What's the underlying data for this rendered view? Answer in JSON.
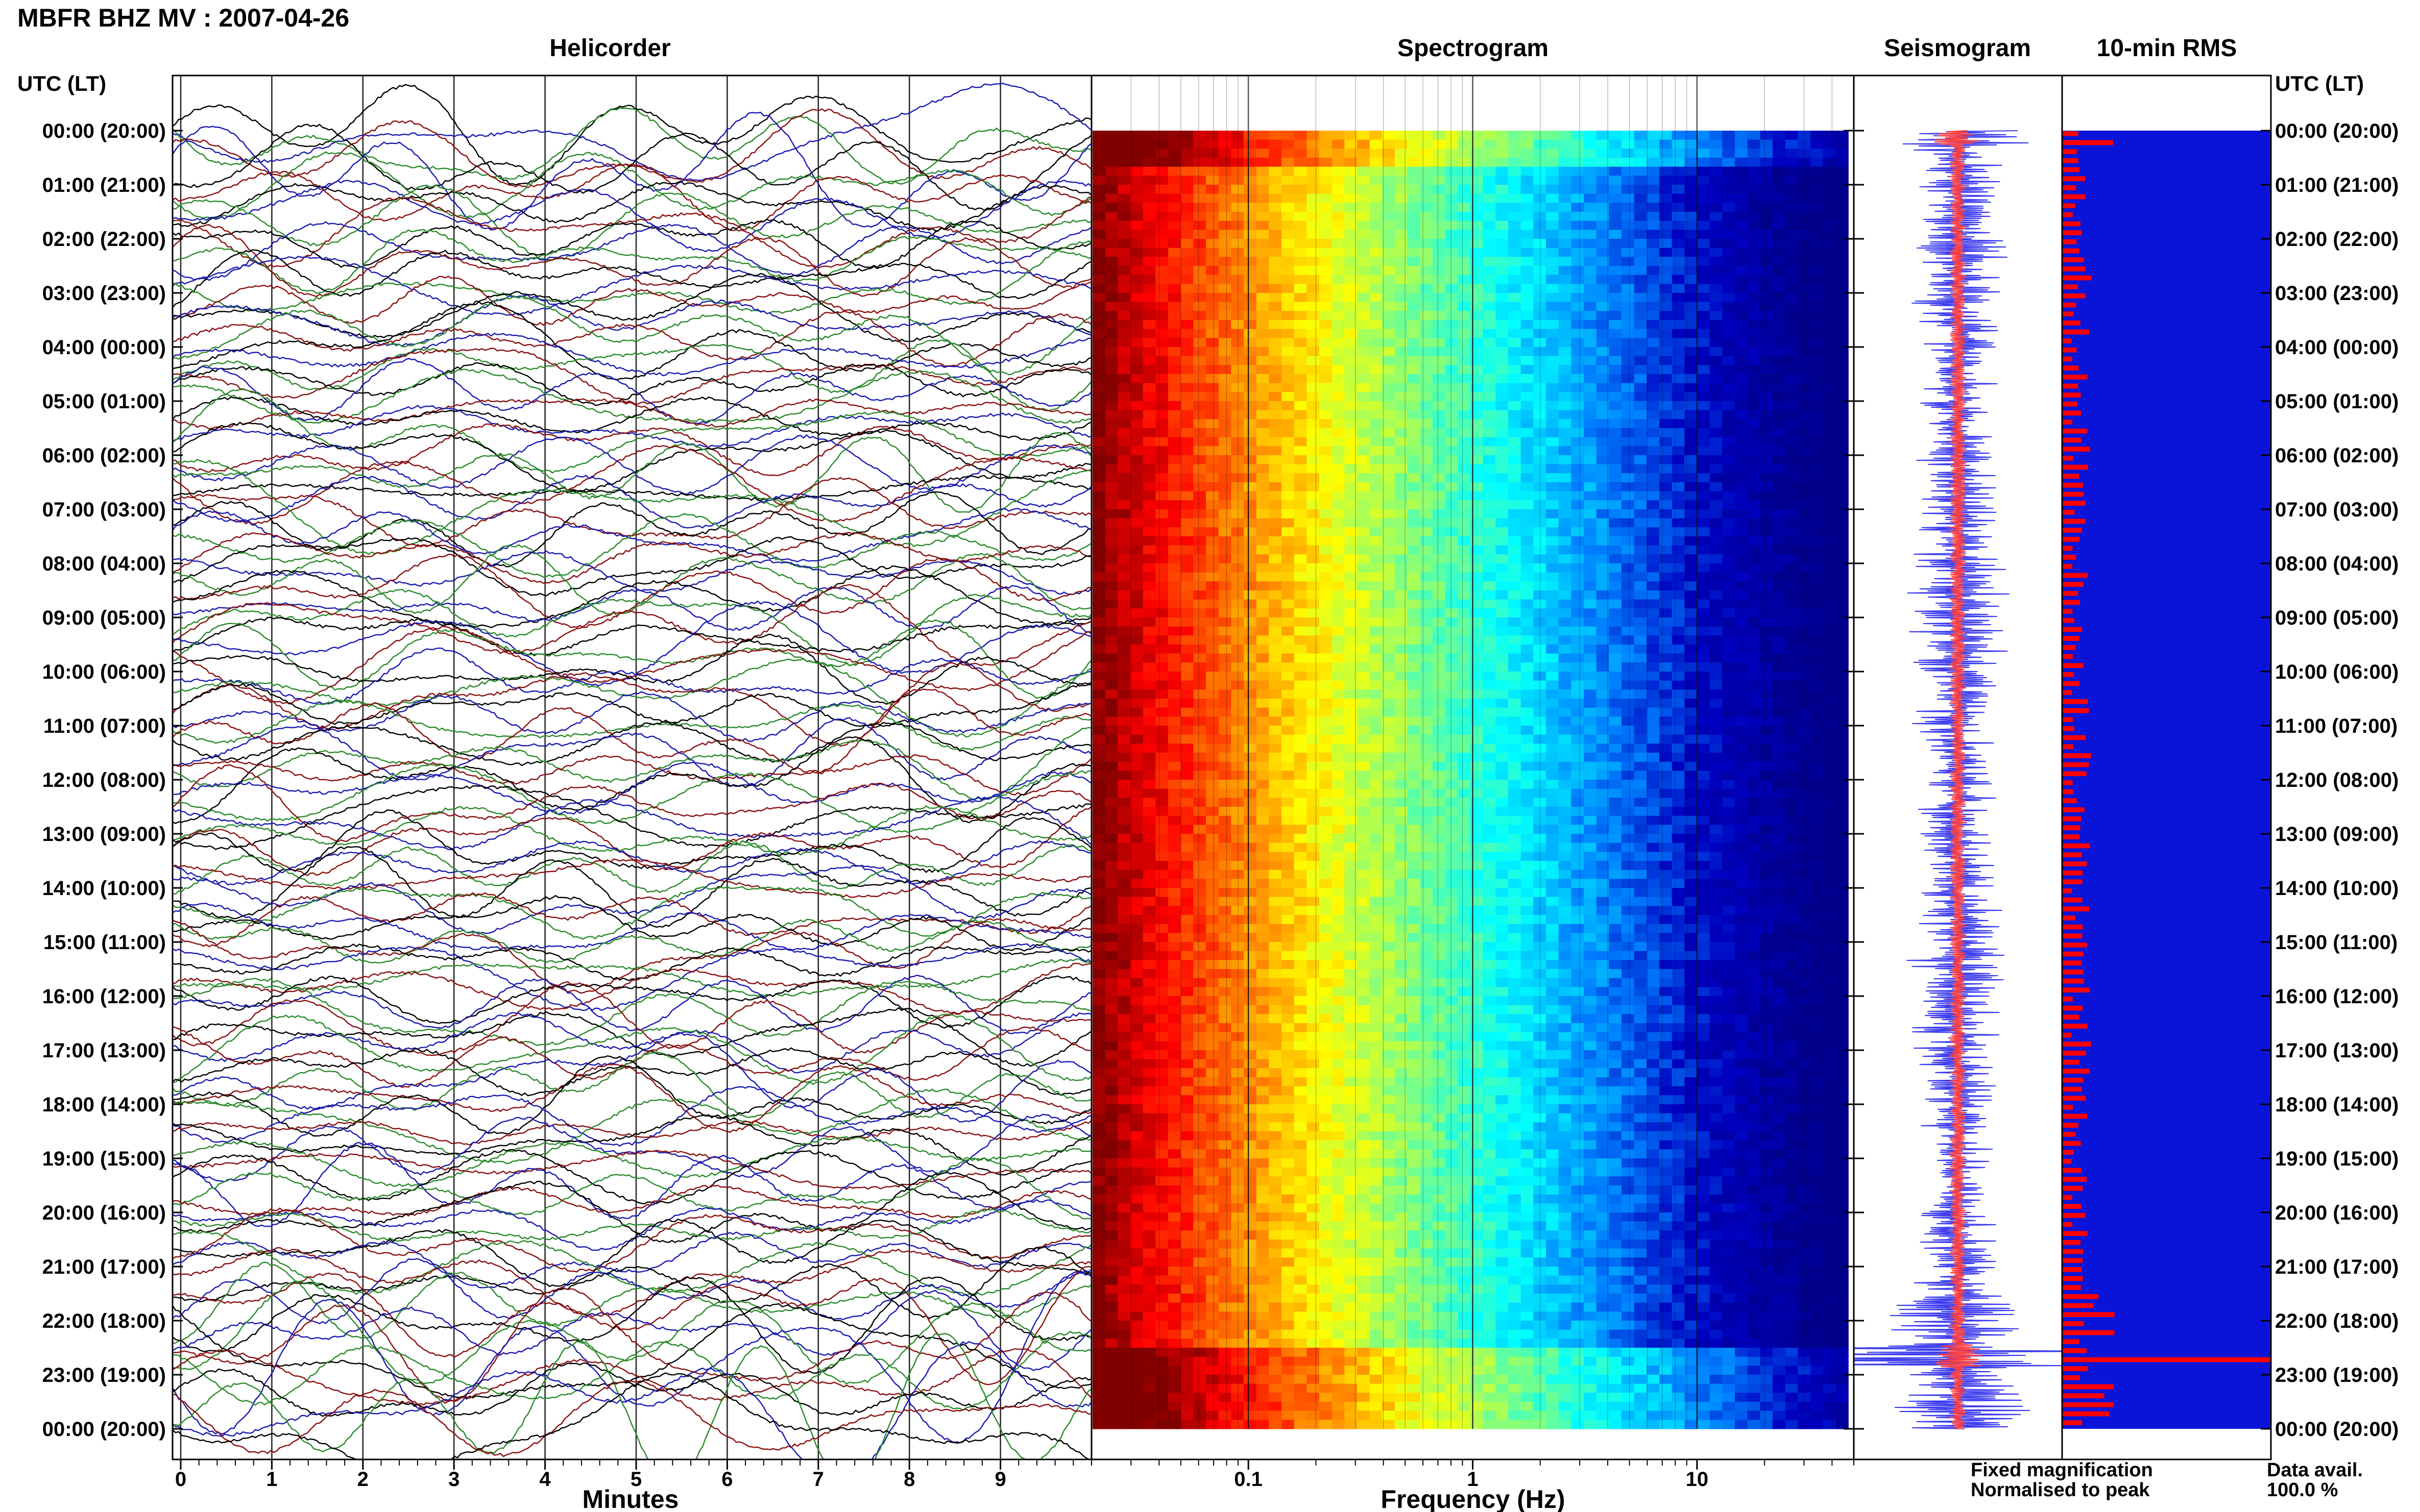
{
  "header": {
    "title": "MBFR BHZ MV : 2007-04-26",
    "utc_label": "UTC (LT)"
  },
  "panels": {
    "helicorder": "Helicorder",
    "spectrogram": "Spectrogram",
    "seismogram": "Seismogram",
    "rms": "10-min RMS"
  },
  "axes": {
    "minutes_label": "Minutes",
    "frequency_label": "Frequency (Hz)"
  },
  "legend": {
    "fixed": "Fixed magnification",
    "normalised": "Normalised to peak",
    "fixed_color": "#1010ee",
    "normalised_color": "#ee1010"
  },
  "data_avail": {
    "label": "Data avail.",
    "value": "100.0 %"
  },
  "colors": {
    "helicorder_traces": [
      "#000000",
      "#1a1ab0",
      "#2a8a2a",
      "#8a1010"
    ],
    "seismogram_fill": "#3a3aee",
    "seismogram_center": "#ff4040",
    "rms_background": "#0a14d8",
    "rms_bar": "#ff0000"
  },
  "chart_data": [
    {
      "type": "line",
      "name": "helicorder",
      "x_ticks": [
        "0",
        "1",
        "2",
        "3",
        "4",
        "5",
        "6",
        "7",
        "8",
        "9"
      ],
      "xlim": [
        0,
        10
      ],
      "rows_per_hour": 6,
      "hour_ticks": [
        "00:00 (20:00)",
        "01:00 (21:00)",
        "02:00 (22:00)",
        "03:00 (23:00)",
        "04:00 (00:00)",
        "05:00 (01:00)",
        "06:00 (02:00)",
        "07:00 (03:00)",
        "08:00 (04:00)",
        "09:00 (05:00)",
        "10:00 (06:00)",
        "11:00 (07:00)",
        "12:00 (08:00)",
        "13:00 (09:00)",
        "14:00 (10:00)",
        "15:00 (11:00)",
        "16:00 (12:00)",
        "17:00 (13:00)",
        "18:00 (14:00)",
        "19:00 (15:00)",
        "20:00 (16:00)",
        "21:00 (17:00)",
        "22:00 (18:00)",
        "23:00 (19:00)",
        "00:00 (20:00)"
      ]
    },
    {
      "type": "heatmap",
      "name": "spectrogram",
      "x_scale": "log",
      "xlim": [
        0.02,
        50
      ],
      "x_ticks": [
        "0.1",
        "1",
        "10"
      ],
      "x_tick_values": [
        0.1,
        1,
        10
      ],
      "colormap": [
        "#800000",
        "#ff0000",
        "#ff8000",
        "#ffff00",
        "#80ff80",
        "#00ffff",
        "#0080ff",
        "#0000c0",
        "#00008a"
      ]
    },
    {
      "type": "line",
      "name": "seismogram"
    },
    {
      "type": "bar",
      "name": "rms",
      "orientation": "horizontal",
      "ylim": [
        0,
        24
      ],
      "peak_times_utc": [
        "00:10",
        "22:40"
      ]
    }
  ]
}
